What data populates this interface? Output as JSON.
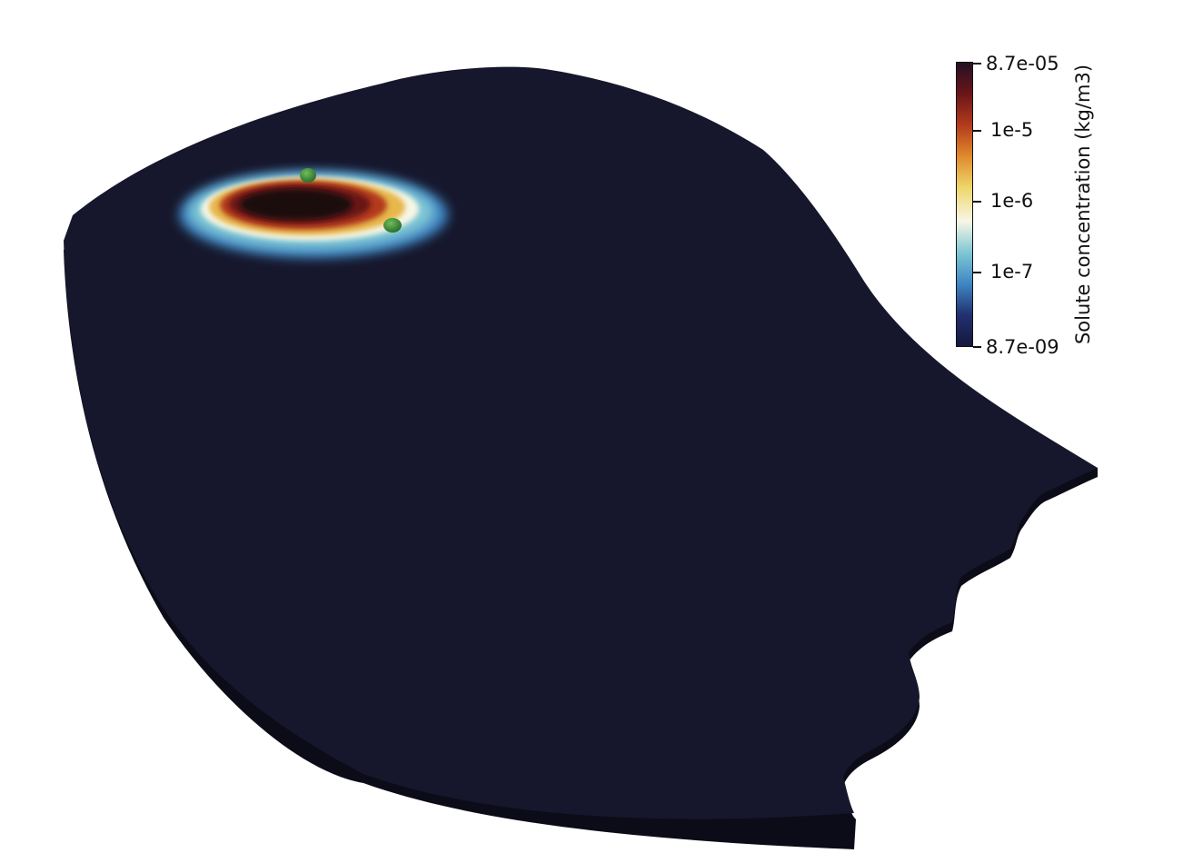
{
  "legend": {
    "title": "Solute concentration (kg/m3)",
    "ticks": [
      "8.7e-05",
      "1e-5",
      "1e-6",
      "1e-7",
      "8.7e-09"
    ],
    "colormap": [
      "#231125",
      "#6b1518",
      "#b23b1c",
      "#e08a2c",
      "#eed66a",
      "#f7f6e6",
      "#7fc7d4",
      "#3f86c4",
      "#21306f",
      "#15183f"
    ]
  },
  "scene": {
    "domain_color": "#16172c",
    "domain_side_color": "#0c0c18",
    "markers_color": "#3b8a3c",
    "plume_colors": [
      "#3f86c4",
      "#7fc7d4",
      "#f7f6e6",
      "#e7b74b",
      "#b23b1c",
      "#6b1518",
      "#1b0b10"
    ]
  }
}
